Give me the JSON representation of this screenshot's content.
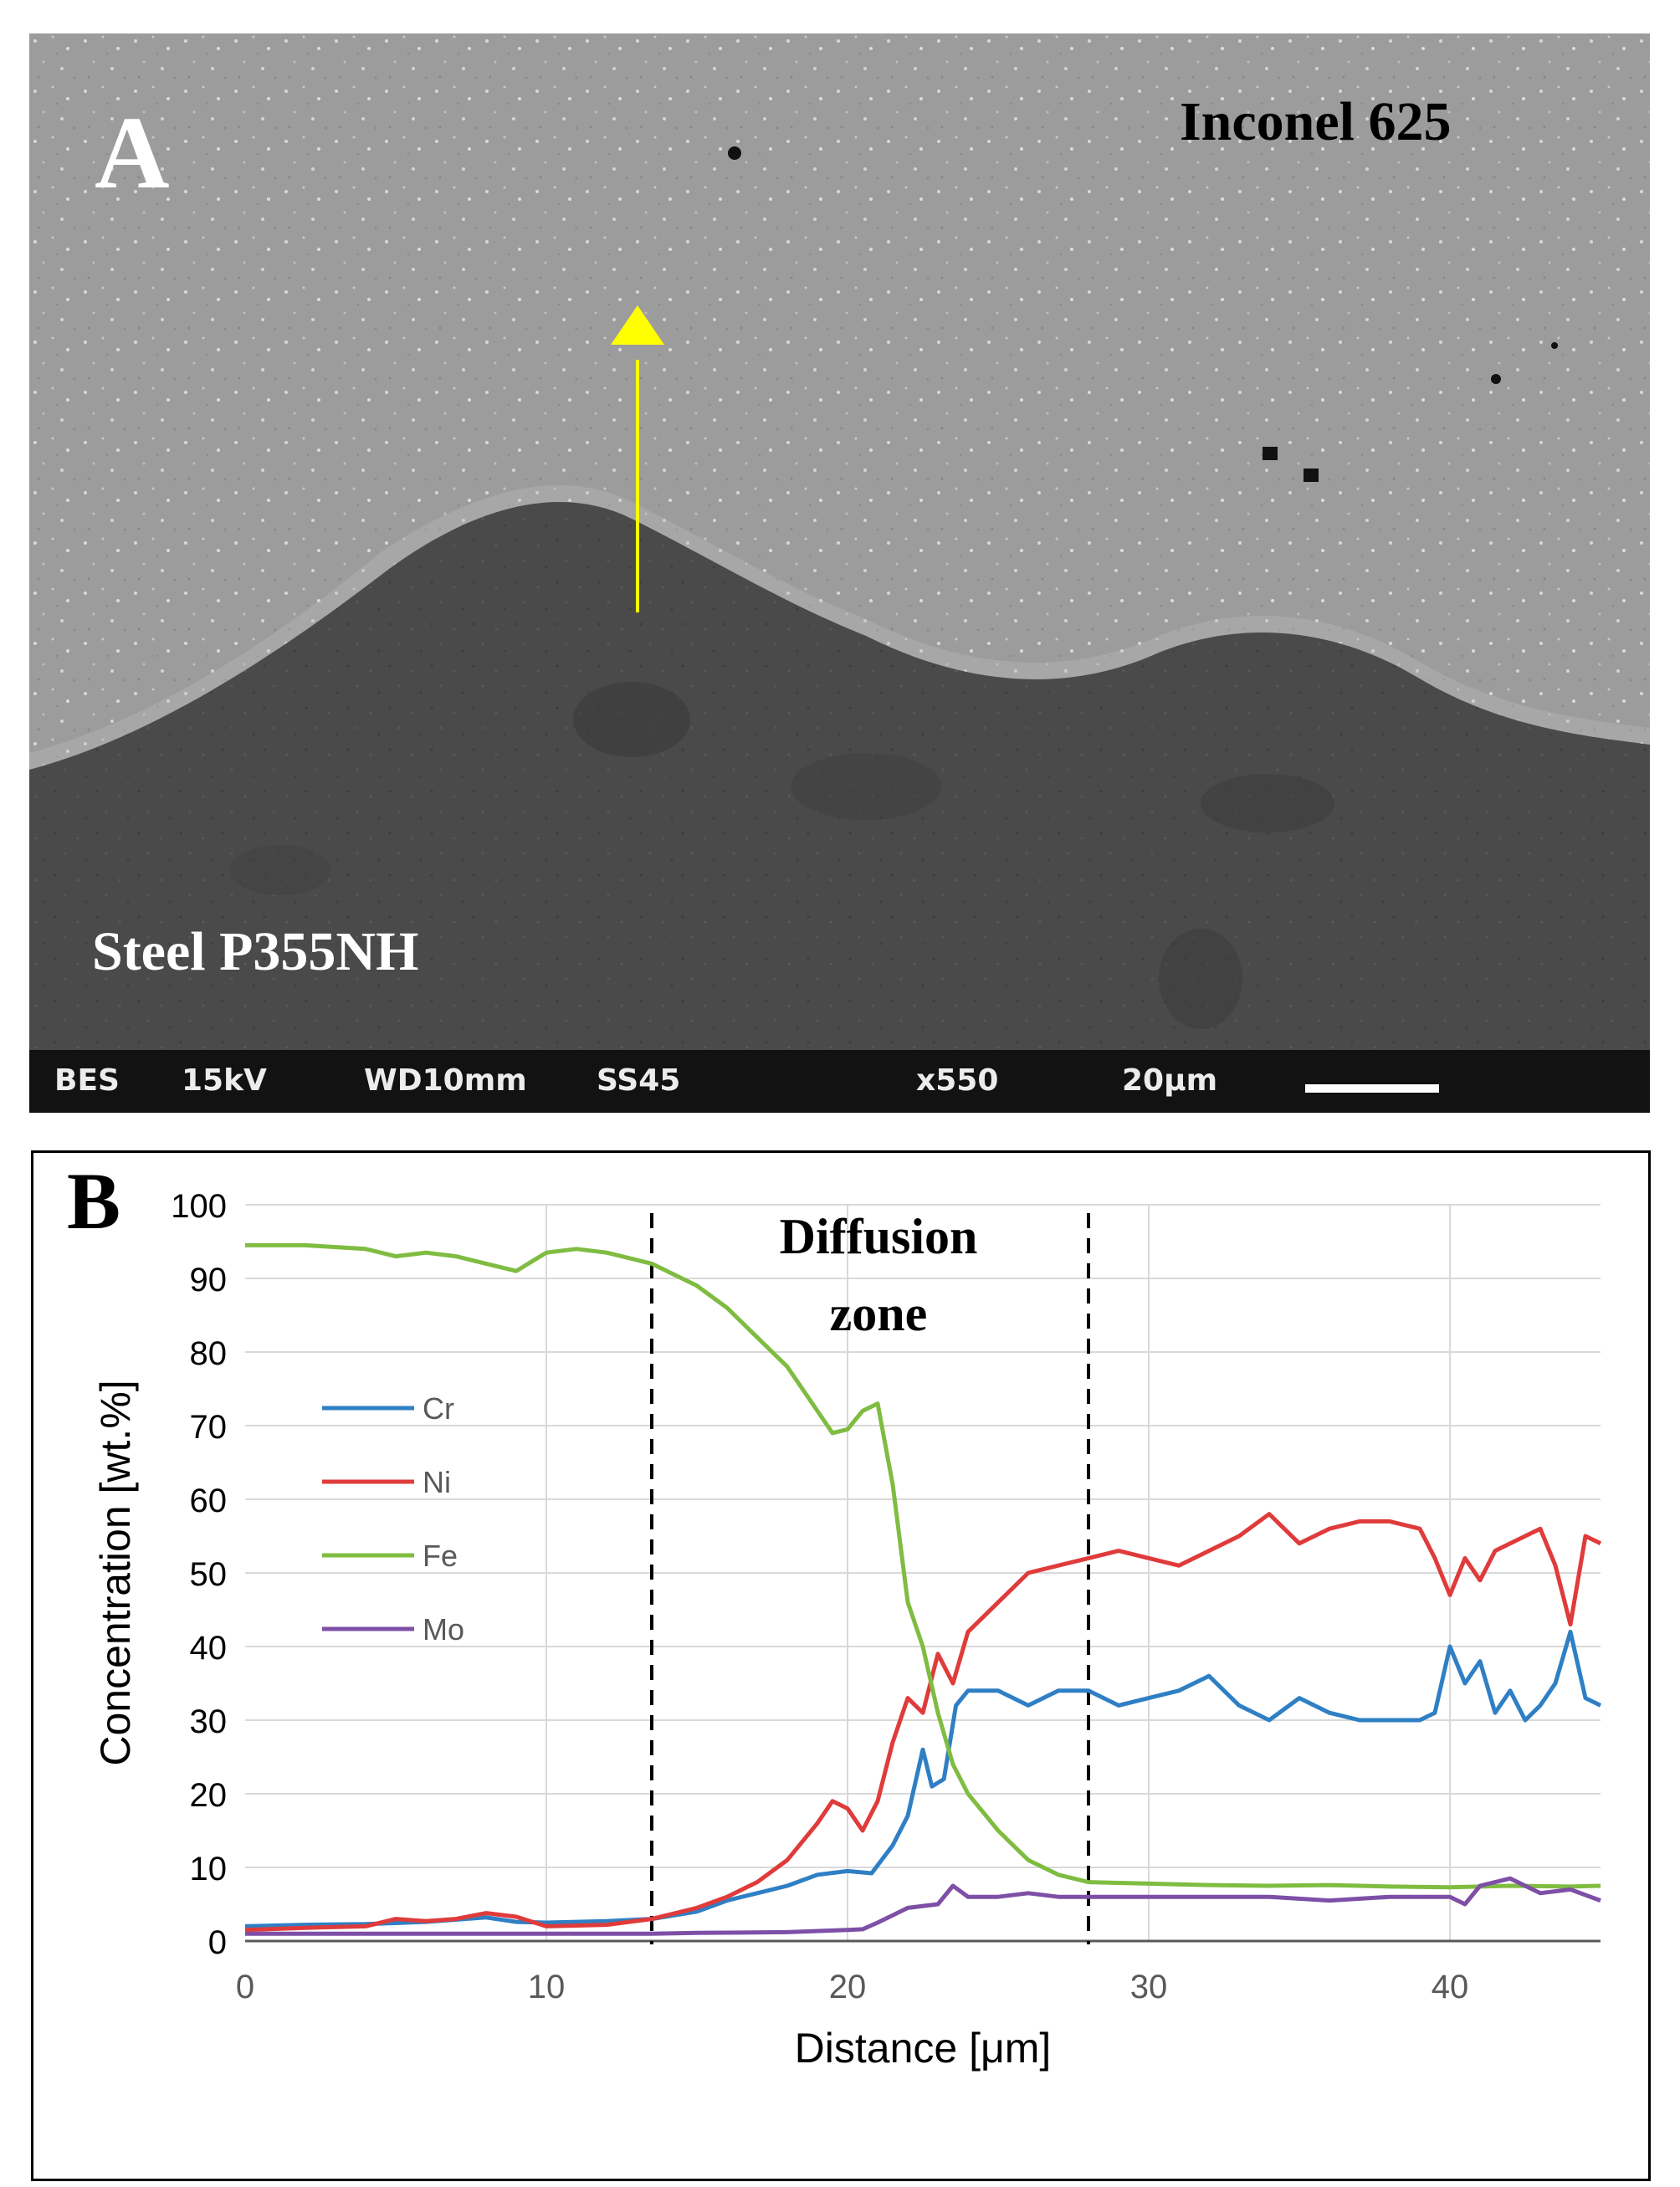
{
  "panel_a": {
    "letter": "A",
    "top_label": "Inconel 625",
    "bottom_label": "Steel P355NH",
    "sem_info": {
      "detector": "BES",
      "voltage": "15kV",
      "working_distance": "WD10mm",
      "spot_size": "SS45",
      "magnification": "x550",
      "scale": "20μm"
    },
    "colors": {
      "arrow": "#ffff00",
      "inconel": "#9c9c9c",
      "steel": "#4a4a4a"
    }
  },
  "panel_b": {
    "letter": "B"
  },
  "chart_data": {
    "type": "line",
    "title": "",
    "xlabel": "Distance [μm]",
    "ylabel": "Concentration [wt.%]",
    "xlim": [
      0,
      45
    ],
    "ylim": [
      0,
      100
    ],
    "xticks": [
      0,
      10,
      20,
      30,
      40
    ],
    "yticks": [
      0,
      10,
      20,
      30,
      40,
      50,
      60,
      70,
      80,
      90,
      100
    ],
    "grid": true,
    "legend_position": "left-middle",
    "annotation": {
      "lines": [
        "Diffusion",
        "zone"
      ],
      "x_bounds": [
        13.5,
        28
      ]
    },
    "series": [
      {
        "name": "Cr",
        "color": "#2f7fc4",
        "x": [
          0,
          2,
          4,
          6,
          8,
          9,
          10,
          12,
          13.5,
          15,
          16,
          17,
          18,
          19,
          20,
          20.8,
          21.5,
          22,
          22.5,
          22.8,
          23.2,
          23.6,
          24,
          25,
          26,
          27,
          28,
          29,
          30,
          31,
          32,
          33,
          34,
          35,
          36,
          37,
          38,
          39,
          39.5,
          40,
          40.5,
          41,
          41.5,
          42,
          42.5,
          43,
          43.5,
          44,
          44.5,
          45
        ],
        "values": [
          2,
          2.2,
          2.3,
          2.6,
          3.2,
          2.6,
          2.5,
          2.7,
          3,
          4,
          5.5,
          6.5,
          7.5,
          9,
          9.5,
          9.2,
          13,
          17,
          26,
          21,
          22,
          32,
          34,
          34,
          32,
          34,
          34,
          32,
          33,
          34,
          36,
          32,
          30,
          33,
          31,
          30,
          30,
          30,
          31,
          40,
          35,
          38,
          31,
          34,
          30,
          32,
          35,
          42,
          33,
          32
        ]
      },
      {
        "name": "Ni",
        "color": "#e03b3b",
        "x": [
          0,
          2,
          4,
          5,
          6,
          7,
          8,
          9,
          10,
          12,
          13.5,
          15,
          16,
          17,
          18,
          19,
          19.5,
          20,
          20.5,
          21,
          21.5,
          22,
          22.5,
          23,
          23.5,
          24,
          25,
          26,
          27,
          28,
          29,
          30,
          31,
          32,
          33,
          34,
          35,
          36,
          37,
          38,
          39,
          39.5,
          40,
          40.5,
          41,
          41.5,
          42,
          43,
          43.5,
          44,
          44.5,
          45
        ],
        "values": [
          1.5,
          1.8,
          2,
          3,
          2.7,
          3,
          3.8,
          3.3,
          2,
          2.2,
          3,
          4.5,
          6,
          8,
          11,
          16,
          19,
          18,
          15,
          19,
          27,
          33,
          31,
          39,
          35,
          42,
          46,
          50,
          51,
          52,
          53,
          52,
          51,
          53,
          55,
          58,
          54,
          56,
          57,
          57,
          56,
          52,
          47,
          52,
          49,
          53,
          54,
          56,
          51,
          43,
          55,
          54
        ]
      },
      {
        "name": "Fe",
        "color": "#7fbc41",
        "x": [
          0,
          2,
          4,
          5,
          6,
          7,
          8,
          9,
          10,
          11,
          12,
          13.5,
          15,
          16,
          17,
          18,
          19,
          19.5,
          20,
          20.5,
          21,
          21.5,
          22,
          22.5,
          23,
          23.5,
          24,
          25,
          26,
          27,
          28,
          30,
          32,
          34,
          36,
          38,
          40,
          42,
          44,
          45
        ],
        "values": [
          94.5,
          94.5,
          94,
          93,
          93.5,
          93,
          92,
          91,
          93.5,
          94,
          93.5,
          92,
          89,
          86,
          82,
          78,
          72,
          69,
          69.5,
          72,
          73,
          62,
          46,
          40,
          31,
          24,
          20,
          15,
          11,
          9,
          8,
          7.8,
          7.6,
          7.5,
          7.6,
          7.4,
          7.3,
          7.5,
          7.4,
          7.5
        ]
      },
      {
        "name": "Mo",
        "color": "#7e4fa6",
        "x": [
          0,
          5,
          10,
          13.5,
          15,
          18,
          20,
          20.5,
          21,
          21.5,
          22,
          23,
          23.5,
          24,
          25,
          26,
          27,
          28,
          30,
          32,
          34,
          36,
          38,
          40,
          40.5,
          41,
          42,
          43,
          44,
          45
        ],
        "values": [
          1,
          1,
          1,
          1,
          1.1,
          1.2,
          1.5,
          1.6,
          2.5,
          3.5,
          4.5,
          5,
          7.5,
          6,
          6,
          6.5,
          6,
          6,
          6,
          6,
          6,
          5.5,
          6,
          6,
          5,
          7.5,
          8.5,
          6.5,
          7,
          5.5
        ]
      }
    ]
  }
}
